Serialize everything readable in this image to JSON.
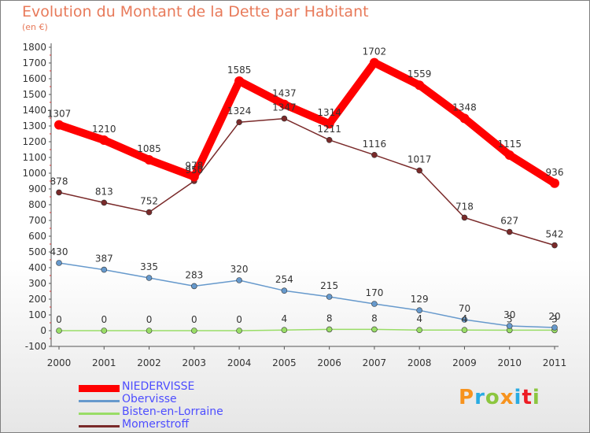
{
  "title": "Evolution du Montant de la Dette par Habitant",
  "unit": "(en €)",
  "logo": {
    "letters": [
      "P",
      "r",
      "o",
      "x",
      "i",
      "t",
      "i"
    ],
    "colors": [
      "#f7931e",
      "#29abe2",
      "#8cc63f",
      "#f7931e",
      "#29abe2",
      "#ed1c24",
      "#8cc63f"
    ]
  },
  "chart_data": {
    "type": "line",
    "x": [
      "2000",
      "2001",
      "2002",
      "2003",
      "2004",
      "2005",
      "2006",
      "2007",
      "2008",
      "2009",
      "2010",
      "2011"
    ],
    "ylim": [
      -100,
      1800
    ],
    "yticks": [
      -100,
      0,
      100,
      200,
      300,
      400,
      500,
      600,
      700,
      800,
      900,
      1000,
      1100,
      1200,
      1300,
      1400,
      1500,
      1600,
      1700,
      1800
    ],
    "grid": false,
    "legend_position": "bottom-left",
    "series": [
      {
        "name": "NIEDERVISSE",
        "color": "#ff0000",
        "values": [
          1307,
          1210,
          1085,
          978,
          1585,
          1437,
          1314,
          1702,
          1559,
          1348,
          1115,
          936
        ]
      },
      {
        "name": "Obervisse",
        "color": "#6699cc",
        "values": [
          430,
          387,
          335,
          283,
          320,
          254,
          215,
          170,
          129,
          70,
          30,
          20
        ]
      },
      {
        "name": "Bisten-en-Lorraine",
        "color": "#99dd66",
        "values": [
          0,
          0,
          0,
          0,
          0,
          4,
          8,
          8,
          4,
          4,
          3,
          3
        ]
      },
      {
        "name": "Momerstroff",
        "color": "#7a2a2a",
        "values": [
          878,
          813,
          752,
          950,
          1324,
          1347,
          1211,
          1116,
          1017,
          718,
          627,
          542
        ]
      }
    ]
  }
}
